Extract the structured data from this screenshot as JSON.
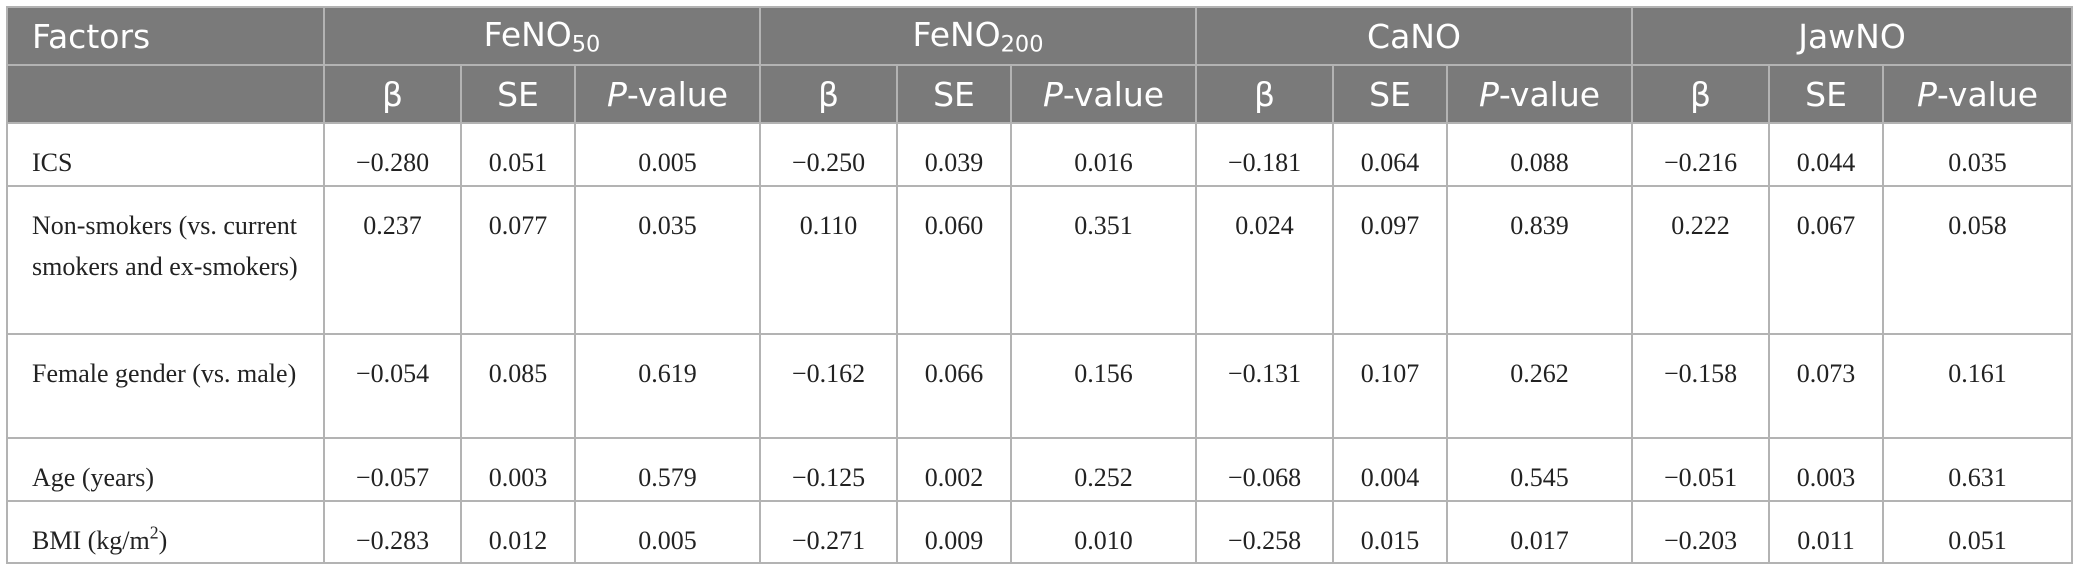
{
  "header": {
    "factors_label": "Factors",
    "groups": [
      {
        "base": "FeNO",
        "sub": "50"
      },
      {
        "base": "FeNO",
        "sub": "200"
      },
      {
        "base": "CaNO",
        "sub": ""
      },
      {
        "base": "JawNO",
        "sub": ""
      }
    ],
    "sub_labels": {
      "beta": "β",
      "se": "SE",
      "p_italic": "P",
      "p_rest": "-value"
    }
  },
  "rows": [
    {
      "label": "ICS",
      "label_sup": "",
      "values": [
        "−0.280",
        "0.051",
        "0.005",
        "−0.250",
        "0.039",
        "0.016",
        "−0.181",
        "0.064",
        "0.088",
        "−0.216",
        "0.044",
        "0.035"
      ]
    },
    {
      "label": "Non-smokers (vs. current smokers and ex-smokers)",
      "label_sup": "",
      "values": [
        "0.237",
        "0.077",
        "0.035",
        "0.110",
        "0.060",
        "0.351",
        "0.024",
        "0.097",
        "0.839",
        "0.222",
        "0.067",
        "0.058"
      ]
    },
    {
      "label": "Female gender (vs. male)",
      "label_sup": "",
      "values": [
        "−0.054",
        "0.085",
        "0.619",
        "−0.162",
        "0.066",
        "0.156",
        "−0.131",
        "0.107",
        "0.262",
        "−0.158",
        "0.073",
        "0.161"
      ]
    },
    {
      "label": "Age (years)",
      "label_sup": "",
      "values": [
        "−0.057",
        "0.003",
        "0.579",
        "−0.125",
        "0.002",
        "0.252",
        "−0.068",
        "0.004",
        "0.545",
        "−0.051",
        "0.003",
        "0.631"
      ]
    },
    {
      "label": "BMI (kg/m",
      "label_sup": "2",
      "label_end": ")",
      "values": [
        "−0.283",
        "0.012",
        "0.005",
        "−0.271",
        "0.009",
        "0.010",
        "−0.258",
        "0.015",
        "0.017",
        "−0.203",
        "0.011",
        "0.051"
      ]
    }
  ]
}
